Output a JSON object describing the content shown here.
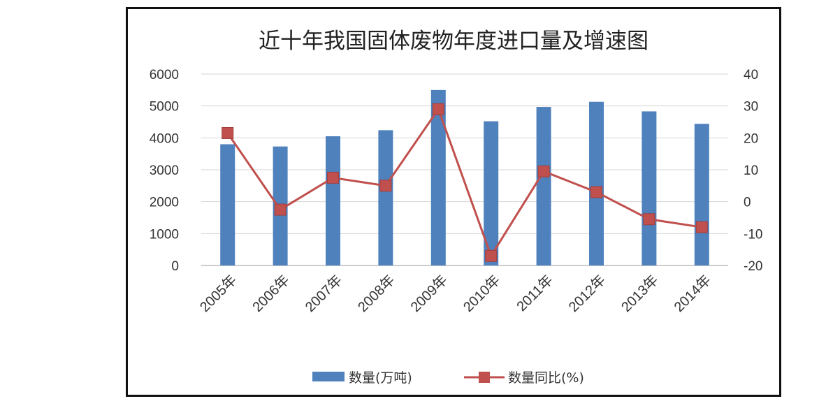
{
  "chart_data": {
    "type": "bar+line",
    "title": "近十年我国固体废物年度进口量及增速图",
    "categories": [
      "2005年",
      "2006年",
      "2007年",
      "2008年",
      "2009年",
      "2010年",
      "2011年",
      "2012年",
      "2013年",
      "2014年"
    ],
    "series": [
      {
        "name": "数量(万吨)",
        "type": "bar",
        "axis": "left",
        "color": "#4f81bd",
        "values": [
          3800,
          3730,
          4050,
          4240,
          5500,
          4520,
          4970,
          5130,
          4830,
          4440
        ]
      },
      {
        "name": "数量同比(%)",
        "type": "line",
        "axis": "right",
        "color": "#c0504d",
        "values": [
          21.5,
          -2.5,
          7.5,
          5,
          29,
          -17,
          9.5,
          3,
          -5.5,
          -8
        ]
      }
    ],
    "ylim_left": [
      0,
      6000
    ],
    "yticks_left": [
      "0",
      "1000",
      "2000",
      "3000",
      "4000",
      "5000",
      "6000"
    ],
    "ylim_right": [
      -20,
      40
    ],
    "yticks_right": [
      "-20",
      "-10",
      "0",
      "10",
      "20",
      "30",
      "40"
    ],
    "grid": true,
    "legend_position": "bottom"
  }
}
